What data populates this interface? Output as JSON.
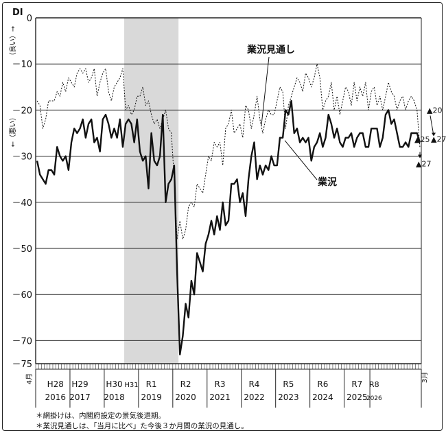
{
  "notes": [
    "＊網掛けは、内閣府設定の景気後退期。",
    "＊業況見通しは、「当月に比べ」た今後３か月間の業況の見通し。"
  ],
  "chart_data": {
    "type": "line",
    "title": "",
    "ylabel": "DI",
    "ylabel_up": "（良い）→",
    "ylabel_down": "←（悪い）",
    "ylim": [
      -75,
      0
    ],
    "yticks": [
      0,
      -10,
      -20,
      -30,
      -40,
      -50,
      -60,
      -70,
      -75
    ],
    "grid": true,
    "x_start": "2016-04",
    "x_end": "2026-03",
    "x_start_label": "4月",
    "x_end_label": "3月",
    "year_labels": [
      {
        "era": "H28",
        "year": "2016"
      },
      {
        "era": "H29",
        "year": "2017"
      },
      {
        "era": "H30",
        "year": "2018"
      },
      {
        "era": "H31",
        "year": ""
      },
      {
        "era": "R1",
        "year": "2019"
      },
      {
        "era": "R2",
        "year": "2020"
      },
      {
        "era": "R3",
        "year": "2021"
      },
      {
        "era": "R4",
        "year": "2022"
      },
      {
        "era": "R5",
        "year": "2023"
      },
      {
        "era": "R6",
        "year": "2024"
      },
      {
        "era": "R7",
        "year": "2025"
      },
      {
        "era": "R8",
        "year": "2026"
      }
    ],
    "recession_shading": {
      "start": "2018-11",
      "end": "2020-05"
    },
    "series": [
      {
        "name": "業況",
        "style": "solid",
        "values": [
          -31,
          -34,
          -35,
          -36,
          -33,
          -33,
          -34,
          -28,
          -30,
          -31,
          -30,
          -33,
          -27,
          -24,
          -25,
          -24,
          -22,
          -26,
          -23,
          -22,
          -27,
          -26,
          -29,
          -22,
          -21,
          -23,
          -26,
          -24,
          -26,
          -22,
          -28,
          -23,
          -22,
          -23,
          -27,
          -22,
          -29,
          -31,
          -30,
          -37,
          -25,
          -31,
          -32,
          -30,
          -21,
          -40,
          -36,
          -35,
          -32,
          -55,
          -73,
          -69,
          -62,
          -65,
          -57,
          -60,
          -51,
          -53,
          -55,
          -49,
          -47,
          -44,
          -47,
          -43,
          -46,
          -40,
          -45,
          -44,
          -36,
          -36,
          -35,
          -40,
          -38,
          -43,
          -35,
          -30,
          -27,
          -35,
          -32,
          -34,
          -32,
          -33,
          -30,
          -32,
          -32,
          -26,
          -26,
          -20,
          -21,
          -18,
          -25,
          -24,
          -27,
          -26,
          -27,
          -26,
          -31,
          -28,
          -27,
          -25,
          -28,
          -26,
          -21,
          -23,
          -26,
          -24,
          -27,
          -28,
          -26,
          -26,
          -25,
          -28,
          -26,
          -25,
          -25,
          -28,
          -28,
          -24,
          -24,
          -24,
          -28,
          -26,
          -21,
          -20,
          -23,
          -22,
          -25,
          -28,
          -28,
          -27,
          -28,
          -25,
          -25,
          -25,
          -27
        ]
      },
      {
        "name": "業況見通し",
        "style": "dotted",
        "values": [
          -18,
          -19,
          -24,
          -22,
          -18,
          -18,
          -18,
          -16,
          -17,
          -14,
          -16,
          -13,
          -14,
          -15,
          -12,
          -11,
          -12,
          -11,
          -14,
          -13,
          -11,
          -17,
          -14,
          -12,
          -11,
          -16,
          -18,
          -15,
          -14,
          -13,
          -11,
          -20,
          -19,
          -21,
          -20,
          -17,
          -17,
          -15,
          -19,
          -18,
          -21,
          -23,
          -22,
          -24,
          -22,
          -20,
          -24,
          -25,
          -35,
          -48,
          -44,
          -48,
          -46,
          -41,
          -40,
          -41,
          -36,
          -37,
          -38,
          -34,
          -30,
          -31,
          -27,
          -28,
          -27,
          -32,
          -24,
          -23,
          -20,
          -25,
          -24,
          -23,
          -26,
          -19,
          -20,
          -24,
          -21,
          -17,
          -22,
          -25,
          -22,
          -20,
          -21,
          -21,
          -18,
          -15,
          -16,
          -24,
          -19,
          -17,
          -15,
          -13,
          -14,
          -16,
          -12,
          -13,
          -15,
          -13,
          -10,
          -13,
          -20,
          -18,
          -17,
          -14,
          -20,
          -17,
          -21,
          -18,
          -15,
          -16,
          -19,
          -14,
          -18,
          -15,
          -17,
          -14,
          -20,
          -16,
          -15,
          -19,
          -17,
          -20,
          -17,
          -14,
          -16,
          -17,
          -20,
          -18,
          -17,
          -20,
          -18,
          -17,
          -18,
          -20,
          -28
        ]
      }
    ],
    "annotations": [
      {
        "text": "業況見通し",
        "target_series": "業況見通し"
      },
      {
        "text": "業況",
        "target_series": "業況"
      },
      {
        "text": "▲20",
        "y": -20
      },
      {
        "text": "▲27",
        "y": -27
      },
      {
        "text": "▲25",
        "y": -25
      },
      {
        "text": "▲27",
        "y": -27
      }
    ]
  }
}
